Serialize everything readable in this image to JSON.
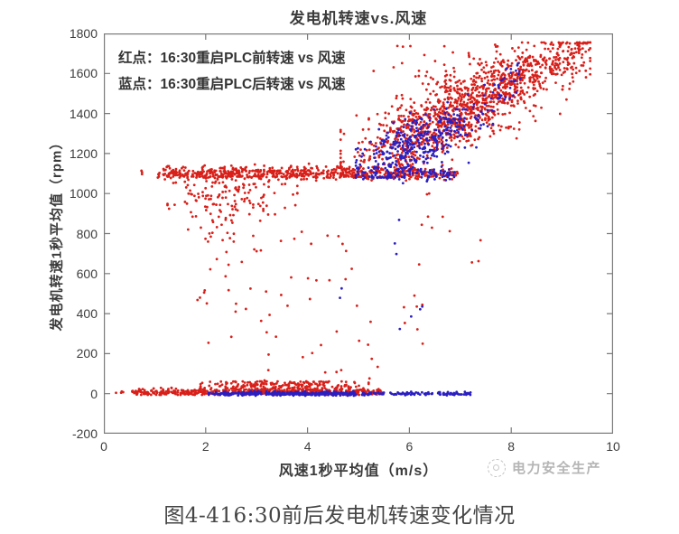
{
  "figure": {
    "caption": "图4-416:30前后发电机转速变化情况",
    "watermark_text": "电力安全生产"
  },
  "chart_data": {
    "type": "scatter",
    "title": "发电机转速vs.风速",
    "xlabel": "风速1秒平均值（m/s）",
    "ylabel": "发电机转速1秒平均值（rpm）",
    "xlim": [
      0,
      10
    ],
    "ylim": [
      -200,
      1800
    ],
    "xticks": [
      0,
      2,
      4,
      6,
      8,
      10
    ],
    "yticks": [
      -200,
      0,
      200,
      400,
      600,
      800,
      1000,
      1200,
      1400,
      1600,
      1800
    ],
    "grid": false,
    "annotations": [
      "红点：16:30重启PLC前转速 vs 风速",
      "蓝点：16:30重启PLC后转速 vs 风速"
    ],
    "series": [
      {
        "name": "16:30重启PLC前转速 vs 风速 (红点)",
        "color": "#d8201a"
      },
      {
        "name": "16:30重启PLC后转速 vs 风速 (蓝点)",
        "color": "#2b1fc0"
      }
    ],
    "frame_color": "#7a7a7a",
    "point_radius": 1.4,
    "seed": 42,
    "clusters": [
      {
        "series": 0,
        "count": 450,
        "x": {
          "type": "uniform",
          "a": 0.55,
          "b": 5.45
        },
        "y": {
          "type": "normal",
          "mean": 8,
          "sd": 9,
          "clip": [
            -6,
            40
          ]
        }
      },
      {
        "series": 0,
        "count": 4,
        "x": {
          "type": "uniform",
          "a": 0.08,
          "b": 0.42
        },
        "y": {
          "type": "normal",
          "mean": 5,
          "sd": 5,
          "clip": [
            -5,
            18
          ]
        }
      },
      {
        "series": 0,
        "count": 240,
        "x": {
          "type": "normal",
          "mean": 3.4,
          "sd": 0.85,
          "clip": [
            1.9,
            5.2
          ]
        },
        "y": {
          "type": "uniform",
          "a": 12,
          "b": 62
        }
      },
      {
        "series": 0,
        "count": 450,
        "x": {
          "type": "uniform",
          "a": 1.05,
          "b": 5.4
        },
        "y": {
          "type": "normal",
          "mean": 1103,
          "sd": 16,
          "clip": [
            1050,
            1160
          ]
        }
      },
      {
        "series": 0,
        "count": 3,
        "x": {
          "type": "uniform",
          "a": 0.68,
          "b": 0.92
        },
        "y": {
          "type": "normal",
          "mean": 1100,
          "sd": 10,
          "clip": [
            1080,
            1125
          ]
        }
      },
      {
        "series": 0,
        "count": 130,
        "x": {
          "type": "uniform",
          "a": 5.4,
          "b": 6.95
        },
        "y": {
          "type": "normal",
          "mean": 1100,
          "sd": 15,
          "clip": [
            1055,
            1150
          ]
        }
      },
      {
        "series": 0,
        "count": 190,
        "x": {
          "type": "normal",
          "mean": 2.4,
          "sd": 0.6,
          "clip": [
            1.25,
            3.8
          ]
        },
        "y": {
          "type": "normal",
          "mean": 1000,
          "sd": 95,
          "clip": [
            760,
            1085
          ]
        }
      },
      {
        "series": 0,
        "count": 40,
        "x": {
          "type": "uniform",
          "a": 1.7,
          "b": 5.1
        },
        "y": {
          "type": "uniform",
          "a": 430,
          "b": 840
        }
      },
      {
        "series": 0,
        "count": 26,
        "x": {
          "type": "uniform",
          "a": 1.9,
          "b": 5.4
        },
        "y": {
          "type": "uniform",
          "a": 40,
          "b": 430
        }
      },
      {
        "series": 0,
        "count": 1150,
        "x": {
          "type": "normal",
          "mean": 6.9,
          "sd": 1.05,
          "clip": [
            4.65,
            9.55
          ]
        },
        "y": {
          "type": "linear",
          "x0": 4.65,
          "base": 1130,
          "slope": 122,
          "sd": 95,
          "clip": [
            1085,
            1755
          ]
        }
      },
      {
        "series": 0,
        "count": 210,
        "x": {
          "type": "uniform",
          "a": 7.5,
          "b": 9.5
        },
        "y": {
          "type": "linear",
          "x0": 7.5,
          "base": 1555,
          "slope": 65,
          "sd": 55,
          "clip": [
            1450,
            1750
          ]
        }
      },
      {
        "series": 0,
        "count": 18,
        "x": {
          "type": "uniform",
          "a": 5.2,
          "b": 7.2
        },
        "y": {
          "type": "uniform",
          "a": 1580,
          "b": 1745
        }
      },
      {
        "series": 0,
        "count": 10,
        "x": {
          "type": "uniform",
          "a": 5.8,
          "b": 6.5
        },
        "y": {
          "type": "uniform",
          "a": 120,
          "b": 1050
        }
      },
      {
        "series": 0,
        "count": 8,
        "x": {
          "type": "uniform",
          "a": 6.3,
          "b": 7.4
        },
        "y": {
          "type": "uniform",
          "a": 600,
          "b": 1050
        }
      },
      {
        "series": 1,
        "count": 300,
        "x": {
          "type": "uniform",
          "a": 2.05,
          "b": 4.95
        },
        "y": {
          "type": "normal",
          "mean": 0,
          "sd": 5,
          "clip": [
            -10,
            12
          ]
        }
      },
      {
        "series": 1,
        "count": 25,
        "x": {
          "type": "uniform",
          "a": 5.05,
          "b": 5.5
        },
        "y": {
          "type": "normal",
          "mean": 0,
          "sd": 4,
          "clip": [
            -8,
            10
          ]
        }
      },
      {
        "series": 1,
        "count": 45,
        "x": {
          "type": "uniform",
          "a": 5.6,
          "b": 6.45
        },
        "y": {
          "type": "normal",
          "mean": 0,
          "sd": 4,
          "clip": [
            -8,
            10
          ]
        }
      },
      {
        "series": 1,
        "count": 40,
        "x": {
          "type": "uniform",
          "a": 6.55,
          "b": 7.25
        },
        "y": {
          "type": "normal",
          "mean": 0,
          "sd": 4,
          "clip": [
            -8,
            10
          ]
        }
      },
      {
        "series": 1,
        "count": 90,
        "x": {
          "type": "uniform",
          "a": 4.95,
          "b": 6.9
        },
        "y": {
          "type": "normal",
          "mean": 1100,
          "sd": 18,
          "clip": [
            1050,
            1155
          ]
        }
      },
      {
        "series": 1,
        "count": 330,
        "x": {
          "type": "normal",
          "mean": 6.05,
          "sd": 0.55,
          "clip": [
            4.95,
            7.35
          ]
        },
        "y": {
          "type": "linear",
          "x0": 5.0,
          "base": 1135,
          "slope": 95,
          "sd": 75,
          "clip": [
            1080,
            1420
          ]
        }
      },
      {
        "series": 1,
        "count": 80,
        "x": {
          "type": "uniform",
          "a": 6.4,
          "b": 8.2
        },
        "y": {
          "type": "linear",
          "x0": 6.4,
          "base": 1280,
          "slope": 165,
          "sd": 70,
          "clip": [
            1150,
            1650
          ]
        }
      },
      {
        "series": 1,
        "count": 7,
        "x": {
          "type": "uniform",
          "a": 5.55,
          "b": 6.3
        },
        "y": {
          "type": "uniform",
          "a": 150,
          "b": 1000
        }
      },
      {
        "series": 1,
        "count": 2,
        "x": {
          "type": "uniform",
          "a": 4.6,
          "b": 4.8
        },
        "y": {
          "type": "uniform",
          "a": 90,
          "b": 950
        }
      }
    ]
  }
}
